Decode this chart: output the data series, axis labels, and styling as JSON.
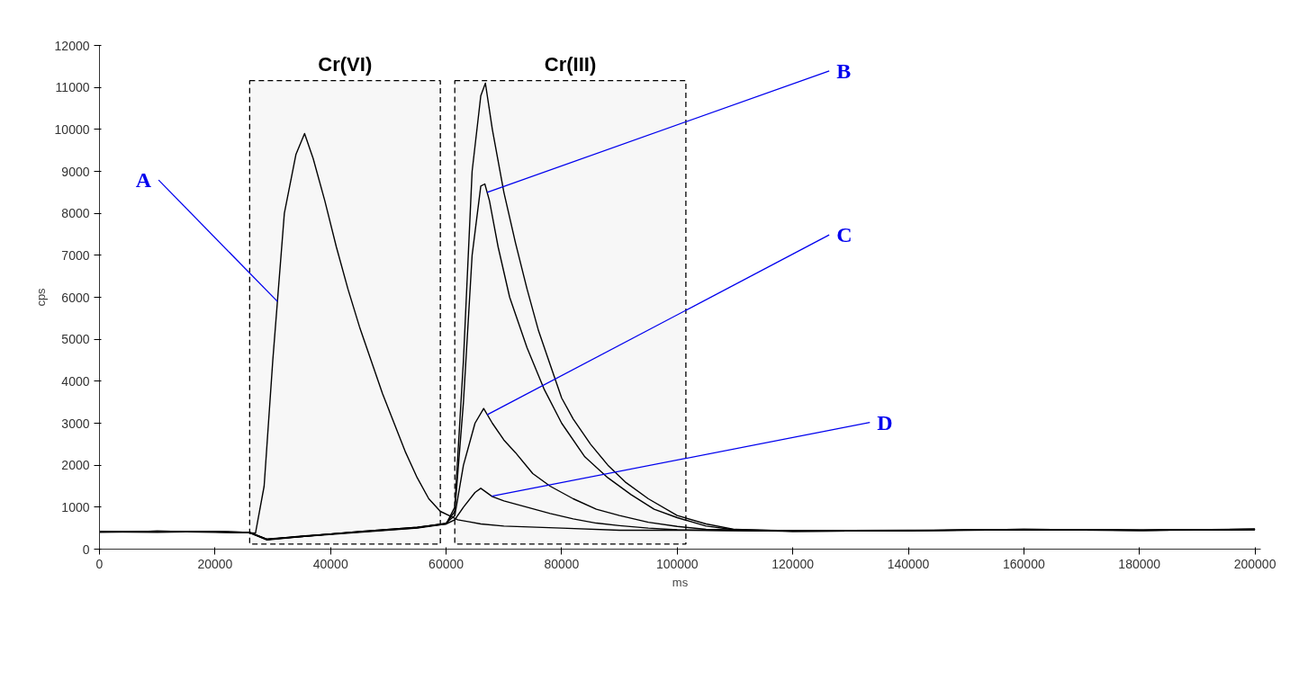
{
  "chart_data": {
    "type": "line",
    "xlabel": "ms",
    "ylabel": "cps",
    "xlim": [
      0,
      201000
    ],
    "ylim": [
      0,
      12000
    ],
    "xticks": [
      0,
      20000,
      40000,
      60000,
      80000,
      100000,
      120000,
      140000,
      160000,
      180000,
      200000
    ],
    "yticks": [
      0,
      1000,
      2000,
      3000,
      4000,
      5000,
      6000,
      7000,
      8000,
      9000,
      10000,
      11000,
      12000
    ],
    "series": [
      {
        "color": "#000000",
        "x": [
          0,
          5000,
          10000,
          15000,
          20000,
          25000,
          27000,
          28500,
          30000,
          32000,
          34000,
          35500,
          37000,
          39000,
          41000,
          43000,
          45000,
          47000,
          49000,
          51000,
          53000,
          55000,
          57000,
          59000,
          60500,
          62000,
          64000,
          66000,
          70000,
          80000,
          90000,
          100000,
          120000,
          140000,
          160000,
          180000,
          200000
        ],
        "values": [
          420,
          410,
          430,
          420,
          410,
          400,
          380,
          1500,
          4500,
          8000,
          9400,
          9900,
          9300,
          8300,
          7200,
          6200,
          5300,
          4500,
          3700,
          3000,
          2300,
          1700,
          1200,
          900,
          800,
          700,
          650,
          600,
          550,
          500,
          450,
          450,
          430,
          440,
          460,
          450,
          460
        ]
      },
      {
        "color": "#000000",
        "x": [
          0,
          10000,
          20000,
          26000,
          29000,
          35000,
          45000,
          55000,
          60000,
          61500,
          63000,
          64500,
          66000,
          66800,
          68000,
          70000,
          72000,
          74000,
          76000,
          78000,
          80000,
          82000,
          85000,
          88000,
          91000,
          95000,
          100000,
          105000,
          110000,
          120000,
          140000,
          160000,
          180000,
          200000
        ],
        "values": [
          410,
          420,
          400,
          390,
          220,
          300,
          420,
          520,
          600,
          1000,
          4500,
          9000,
          10800,
          11100,
          10000,
          8500,
          7300,
          6200,
          5200,
          4400,
          3600,
          3100,
          2500,
          2000,
          1600,
          1200,
          800,
          600,
          470,
          430,
          440,
          470,
          450,
          480
        ]
      },
      {
        "color": "#000000",
        "x": [
          0,
          10000,
          20000,
          26000,
          29000,
          35000,
          45000,
          55000,
          60000,
          61500,
          63000,
          64500,
          66000,
          66700,
          67500,
          69000,
          71000,
          74000,
          77000,
          80000,
          84000,
          88000,
          92000,
          96000,
          100000,
          105000,
          110000,
          120000,
          140000,
          160000,
          180000,
          200000
        ],
        "values": [
          410,
          400,
          420,
          400,
          230,
          300,
          420,
          520,
          610,
          900,
          3500,
          7000,
          8650,
          8700,
          8300,
          7200,
          6000,
          4800,
          3800,
          3000,
          2200,
          1700,
          1300,
          950,
          750,
          550,
          460,
          440,
          450,
          460,
          450,
          470
        ]
      },
      {
        "color": "#000000",
        "x": [
          0,
          10000,
          20000,
          26000,
          29000,
          35000,
          45000,
          55000,
          60000,
          61500,
          63000,
          65000,
          66500,
          68000,
          70000,
          72000,
          75000,
          78000,
          82000,
          86000,
          90000,
          95000,
          100000,
          105000,
          120000,
          140000,
          160000,
          180000,
          200000
        ],
        "values": [
          400,
          430,
          410,
          390,
          230,
          310,
          410,
          510,
          620,
          800,
          2000,
          3000,
          3350,
          3000,
          2600,
          2300,
          1800,
          1500,
          1200,
          950,
          800,
          640,
          540,
          470,
          430,
          440,
          470,
          450,
          470
        ]
      },
      {
        "color": "#000000",
        "x": [
          0,
          10000,
          20000,
          26000,
          29000,
          35000,
          45000,
          55000,
          60000,
          61500,
          63000,
          65000,
          66000,
          68000,
          70000,
          74000,
          78000,
          82000,
          86000,
          90000,
          95000,
          100000,
          120000,
          140000,
          160000,
          180000,
          200000
        ],
        "values": [
          420,
          410,
          420,
          400,
          240,
          300,
          400,
          500,
          600,
          700,
          1000,
          1350,
          1450,
          1250,
          1150,
          1000,
          850,
          720,
          620,
          560,
          500,
          460,
          430,
          440,
          460,
          450,
          470
        ]
      }
    ],
    "bands": [
      {
        "axis": "x",
        "from": 26000,
        "to": 59000,
        "label": "Cr(VI)",
        "color": "#000000"
      },
      {
        "axis": "x",
        "from": 61500,
        "to": 101500,
        "label": "Cr(III)",
        "color": "#000000"
      }
    ],
    "annotations": [
      {
        "text": "A",
        "x": 30800,
        "y": 5900
      },
      {
        "text": "B",
        "x": 67100,
        "y": 8500
      },
      {
        "text": "C",
        "x": 67100,
        "y": 3200
      },
      {
        "text": "D",
        "x": 67900,
        "y": 1260
      }
    ]
  }
}
